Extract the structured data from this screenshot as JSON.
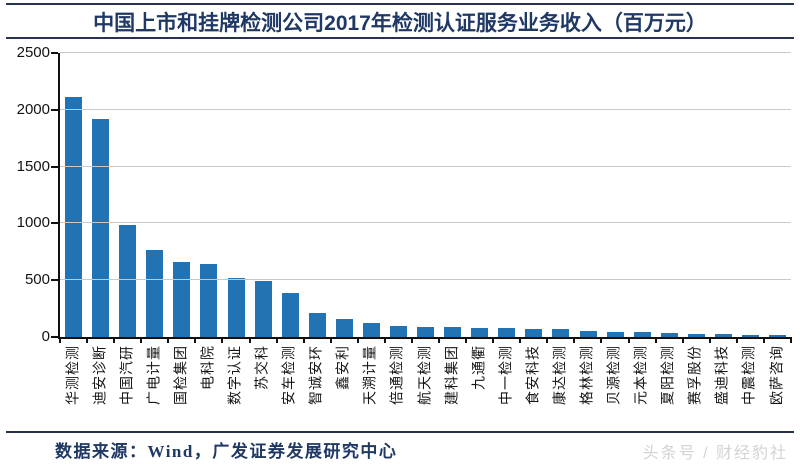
{
  "title": "中国上市和挂牌检测公司2017年检测认证服务业务收入（百万元）",
  "source_note": "数据来源：Wind，广发证券发展研究中心",
  "watermark": "头条号 / 财经豹社",
  "colors": {
    "bar": "#2173b4",
    "title_text": "#1f3864",
    "rule": "#26324e",
    "gridline": "#c9c9c9",
    "axis": "#111111",
    "source_text": "#1f3864",
    "watermark_text": "#d3d3d3"
  },
  "chart_data": {
    "type": "bar",
    "title": "中国上市和挂牌检测公司2017年检测认证服务业务收入（百万元）",
    "categories": [
      "华测检测",
      "迪安诊断",
      "中国汽研",
      "广电计量",
      "国检集团",
      "电科院",
      "数字认证",
      "苏交科",
      "安车检测",
      "智诚安环",
      "鑫安利",
      "天溯计量",
      "倍通检测",
      "航天检测",
      "建科集团",
      "九通衢",
      "中一检测",
      "食安科技",
      "康达检测",
      "格林检测",
      "贝源检测",
      "元本检测",
      "夏阳检测",
      "赛孚股份",
      "盛迪科技",
      "中震检测",
      "欧萨咨询"
    ],
    "values": [
      2110,
      1915,
      990,
      768,
      663,
      640,
      518,
      490,
      385,
      213,
      155,
      125,
      95,
      90,
      85,
      80,
      77,
      74,
      70,
      57,
      47,
      40,
      34,
      30,
      27,
      21,
      17
    ],
    "xlabel": "",
    "ylabel": "",
    "ylim": [
      0,
      2500
    ],
    "yticks": [
      0,
      500,
      1000,
      1500,
      2000,
      2500
    ],
    "grid": true,
    "legend_position": "none",
    "bar_color": "#2173b4"
  }
}
